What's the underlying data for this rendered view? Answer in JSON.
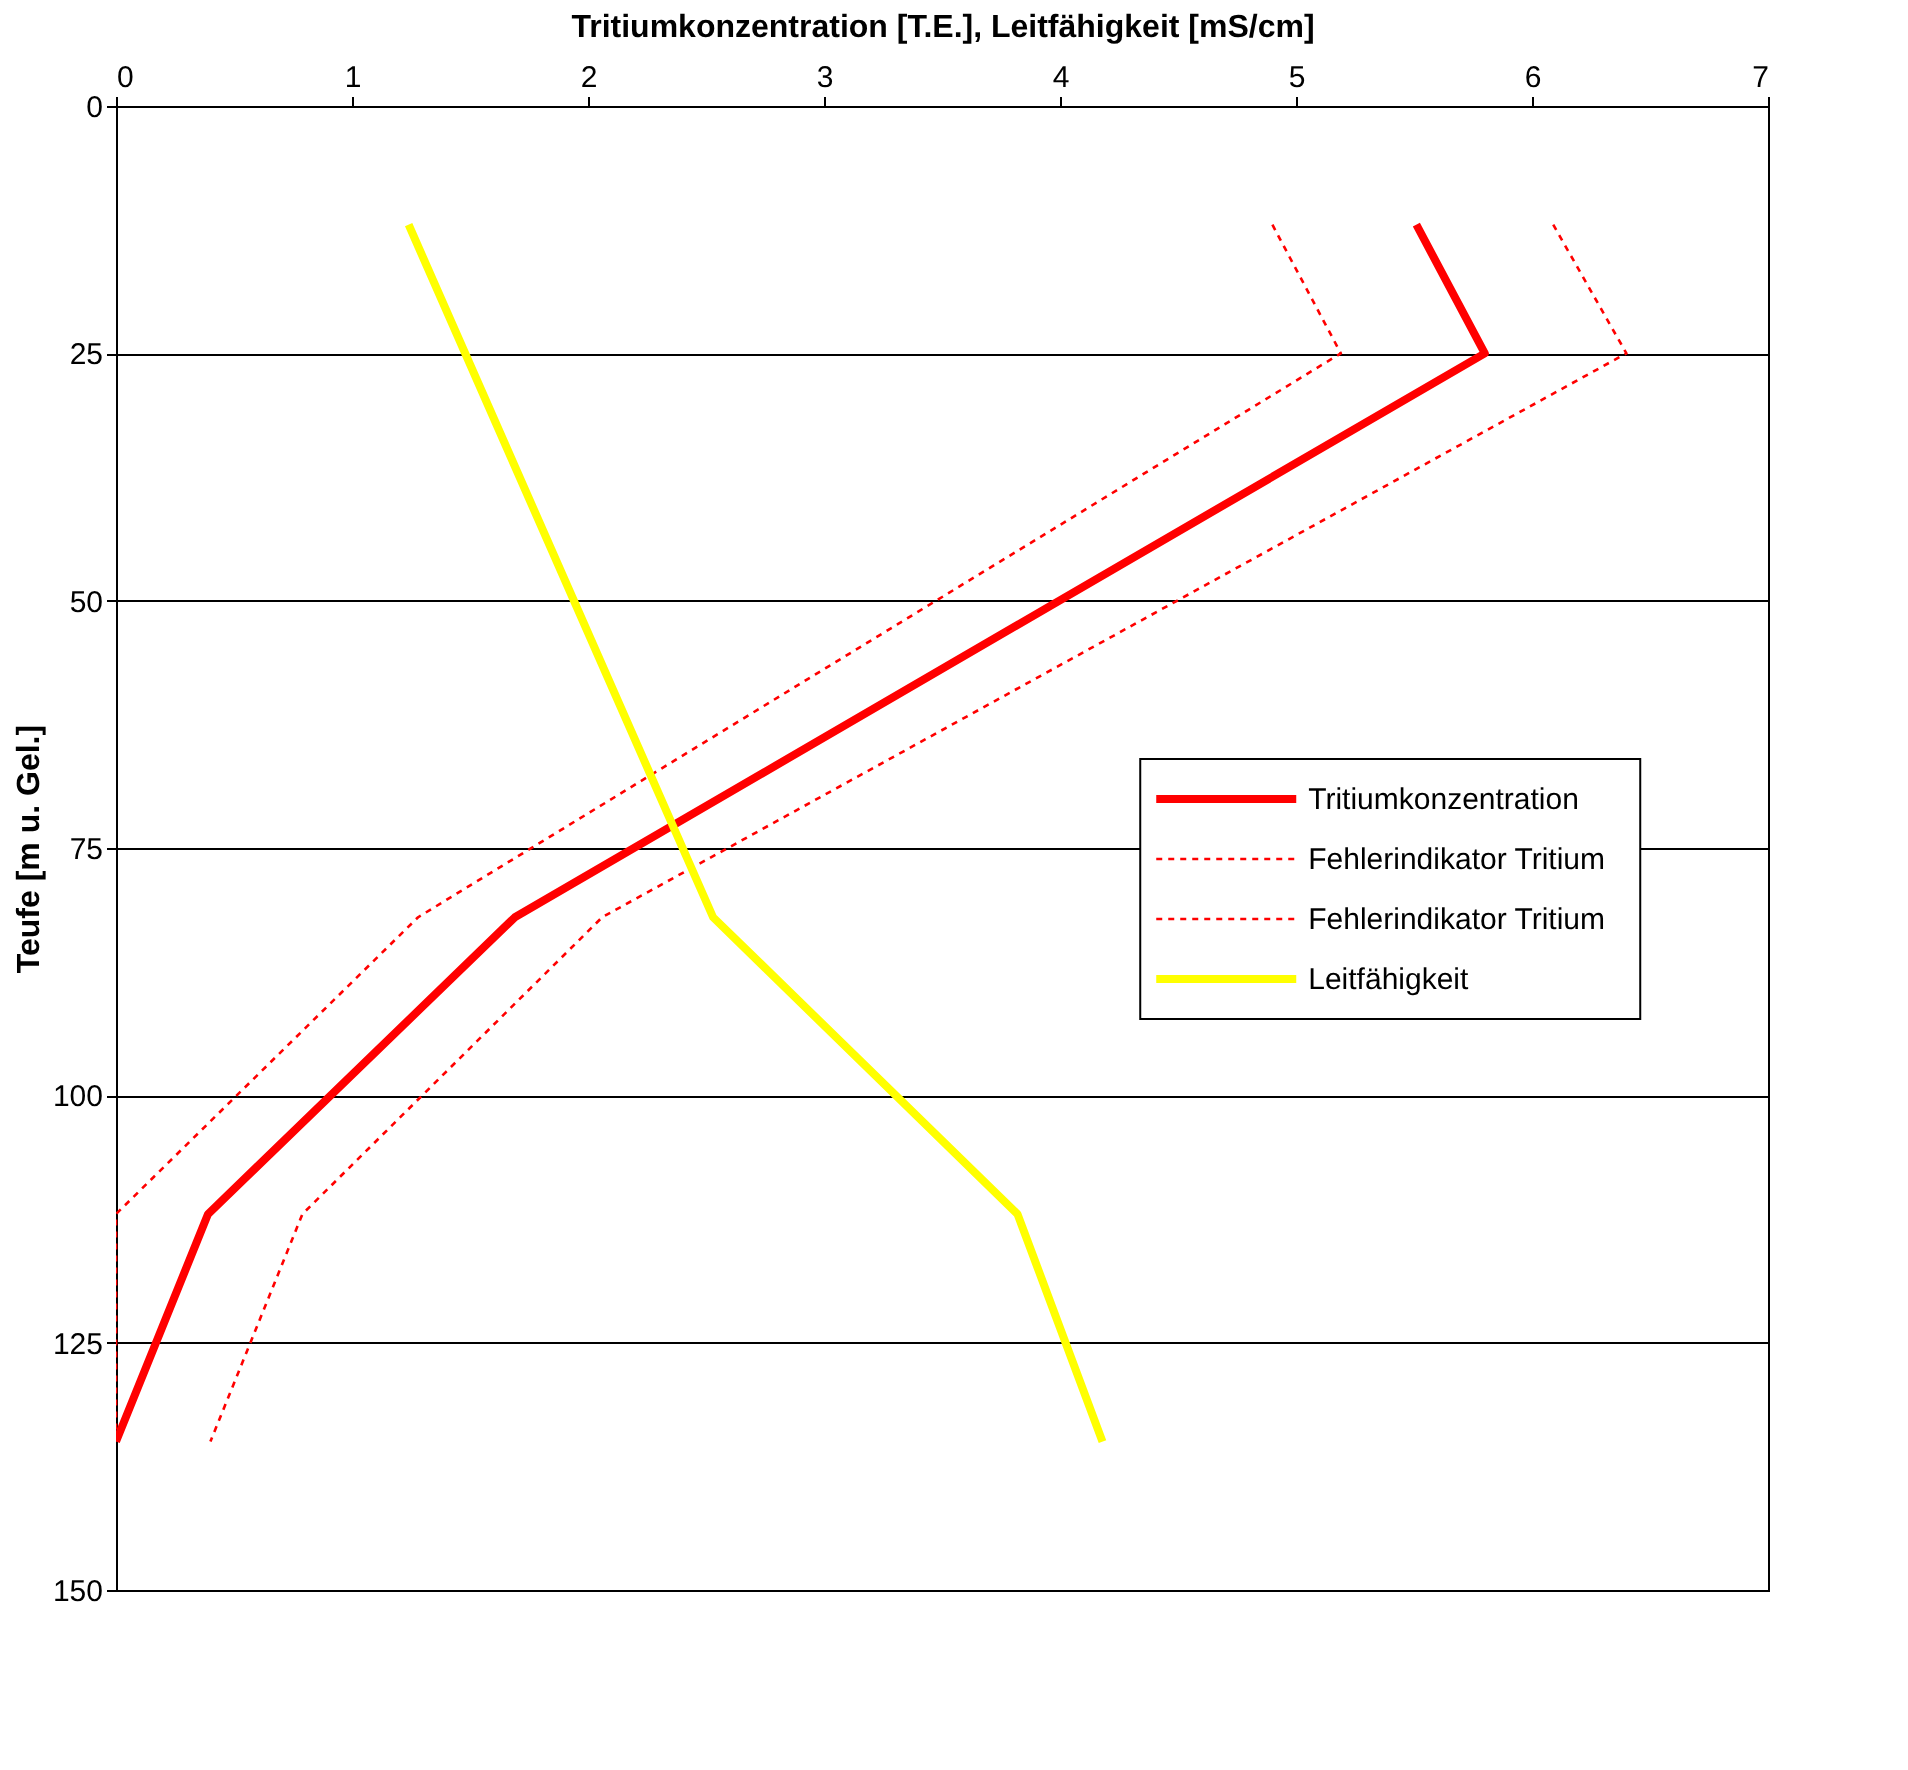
{
  "chart_data": {
    "type": "line",
    "xlabel": "Tritiumkonzentration [T.E.], Leitfähigkeit [mS/cm]",
    "ylabel": "Teufe [m u. Gel.]",
    "xlim": [
      0,
      7
    ],
    "xticks": [
      0,
      1,
      2,
      3,
      4,
      5,
      6,
      7
    ],
    "ylim": [
      150,
      0
    ],
    "yticks": [
      0,
      25,
      50,
      75,
      100,
      125,
      150
    ],
    "grid": "y",
    "legend": "right",
    "marker": "none",
    "series": [
      {
        "name": "Tritiumkonzentration",
        "color": "#ff0000",
        "line_style": "solid",
        "x": [
          5.51,
          5.8,
          1.69,
          0.39,
          0
        ],
        "values": [
          12,
          25,
          82,
          112,
          135
        ]
      },
      {
        "name": "Fehlerindikator Tritium",
        "color": "#ff0000",
        "line_style": "dotted",
        "x": [
          4.9,
          5.19,
          1.28,
          0,
          0
        ],
        "values": [
          12,
          25,
          82,
          112,
          135
        ]
      },
      {
        "name": "Fehlerindikator Tritium",
        "color": "#ff0000",
        "line_style": "dotted",
        "x": [
          6.09,
          6.4,
          2.06,
          0.79,
          0.4
        ],
        "values": [
          12,
          25,
          82,
          112,
          135
        ]
      },
      {
        "name": "Leitfähigkeit",
        "color": "#ffff00",
        "line_style": "solid",
        "x": [
          1.24,
          2.53,
          3.82,
          4.18
        ],
        "values": [
          12,
          82,
          112,
          135
        ]
      }
    ]
  }
}
